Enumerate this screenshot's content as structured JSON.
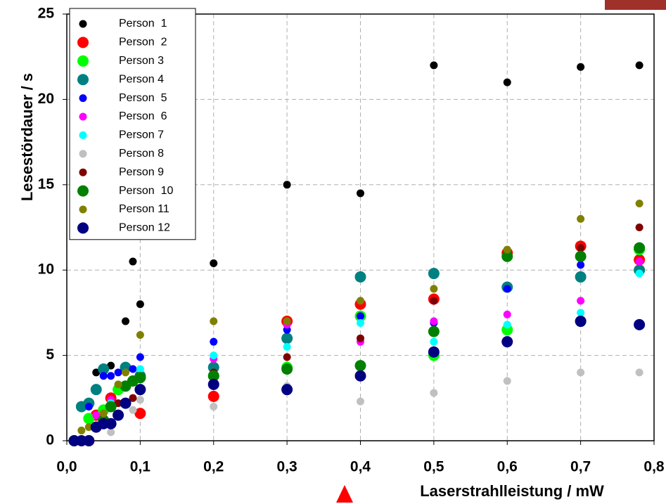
{
  "chart_data": {
    "type": "scatter",
    "x_label": "Laserstrahlleistung / mW",
    "y_label": "Lesestördauer / s",
    "xlim": [
      0,
      0.8
    ],
    "xticks": [
      {
        "value": 0,
        "label": "0,0"
      },
      {
        "value": 0.1,
        "label": "0,1"
      },
      {
        "value": 0.2,
        "label": "0,2"
      },
      {
        "value": 0.3,
        "label": "0,3"
      },
      {
        "value": 0.4,
        "label": "0,4"
      },
      {
        "value": 0.5,
        "label": "0,5"
      },
      {
        "value": 0.6,
        "label": "0,6"
      },
      {
        "value": 0.7,
        "label": "0,7"
      },
      {
        "value": 0.8,
        "label": "0,8"
      }
    ],
    "ylim": [
      0,
      25
    ],
    "yticks": [
      0,
      5,
      10,
      15,
      20,
      25
    ],
    "grid": true,
    "legend": "top-left",
    "series": [
      {
        "name": "Person  1",
        "color": "#000000",
        "marker": "small",
        "x": [
          0.01,
          0.02,
          0.03,
          0.04,
          0.06,
          0.08,
          0.09,
          0.1,
          0.2,
          0.3,
          0.4,
          0.5,
          0.6,
          0.7,
          0.78
        ],
        "values": [
          0,
          0,
          0,
          4,
          4.4,
          7,
          10.5,
          8,
          10.4,
          15,
          14.5,
          22,
          21,
          21.9,
          22
        ]
      },
      {
        "name": "Person  2",
        "color": "#ff0000",
        "marker": "large",
        "x": [
          0.03,
          0.04,
          0.06,
          0.1,
          0.2,
          0.3,
          0.4,
          0.5,
          0.6,
          0.7,
          0.78
        ],
        "values": [
          0,
          1.5,
          2.5,
          1.6,
          2.6,
          7,
          8,
          8.3,
          11,
          11.4,
          10.6
        ]
      },
      {
        "name": "Person 3",
        "color": "#00ff00",
        "marker": "large",
        "x": [
          0.01,
          0.03,
          0.05,
          0.07,
          0.1,
          0.2,
          0.3,
          0.4,
          0.5,
          0.6,
          0.7,
          0.78
        ],
        "values": [
          0,
          1.3,
          1.8,
          3,
          3.7,
          3.8,
          4.3,
          7.3,
          5,
          6.5,
          7,
          11.2
        ]
      },
      {
        "name": "Person 4",
        "color": "#008080",
        "marker": "large",
        "x": [
          0.02,
          0.03,
          0.04,
          0.05,
          0.08,
          0.1,
          0.2,
          0.3,
          0.4,
          0.5,
          0.6,
          0.7,
          0.78
        ],
        "values": [
          2,
          2.2,
          3,
          4.2,
          4.3,
          3.8,
          4.3,
          6,
          9.6,
          9.8,
          9,
          9.6,
          10
        ]
      },
      {
        "name": "Person  5",
        "color": "#0000ff",
        "marker": "small",
        "x": [
          0.03,
          0.05,
          0.06,
          0.07,
          0.09,
          0.1,
          0.2,
          0.3,
          0.4,
          0.5,
          0.6,
          0.7,
          0.78
        ],
        "values": [
          2,
          3.8,
          3.8,
          4,
          4.2,
          4.9,
          5.8,
          6.5,
          7.3,
          6.9,
          8.9,
          10.3,
          11.4
        ]
      },
      {
        "name": "Person  6",
        "color": "#ff00ff",
        "marker": "small",
        "x": [
          0.04,
          0.06,
          0.2,
          0.3,
          0.4,
          0.5,
          0.6,
          0.7,
          0.78
        ],
        "values": [
          1.5,
          2.4,
          4.8,
          6.8,
          5.8,
          7,
          7.4,
          8.2,
          10.5
        ]
      },
      {
        "name": "Person 7",
        "color": "#00ffff",
        "marker": "small",
        "x": [
          0.06,
          0.1,
          0.2,
          0.3,
          0.4,
          0.5,
          0.6,
          0.7,
          0.78
        ],
        "values": [
          2.2,
          4.2,
          5,
          5.5,
          6.9,
          5.8,
          6.8,
          7.5,
          9.8
        ]
      },
      {
        "name": "Person 8",
        "color": "#c0c0c0",
        "marker": "small",
        "x": [
          0.06,
          0.09,
          0.1,
          0.2,
          0.3,
          0.4,
          0.5,
          0.6,
          0.7,
          0.78
        ],
        "values": [
          0.5,
          1.8,
          2.4,
          2,
          3.2,
          2.3,
          2.8,
          3.5,
          4,
          4
        ]
      },
      {
        "name": "Person 9",
        "color": "#800000",
        "marker": "small",
        "x": [
          0.07,
          0.09,
          0.2,
          0.3,
          0.4,
          0.5,
          0.6,
          0.7,
          0.78
        ],
        "values": [
          2.2,
          2.5,
          4,
          4.9,
          6,
          8.2,
          11,
          11.3,
          12.5
        ]
      },
      {
        "name": "Person  10",
        "color": "#008000",
        "marker": "large",
        "x": [
          0.01,
          0.05,
          0.06,
          0.08,
          0.09,
          0.1,
          0.2,
          0.3,
          0.4,
          0.5,
          0.6,
          0.7,
          0.78
        ],
        "values": [
          0,
          1.2,
          2,
          3.2,
          3.5,
          3.7,
          3.8,
          4.2,
          4.4,
          6.4,
          10.8,
          10.8,
          11.3
        ]
      },
      {
        "name": "Person 11",
        "color": "#808000",
        "marker": "small",
        "x": [
          0.02,
          0.03,
          0.05,
          0.07,
          0.08,
          0.1,
          0.2,
          0.3,
          0.4,
          0.5,
          0.6,
          0.7,
          0.78
        ],
        "values": [
          0.6,
          0.8,
          1.6,
          3.3,
          4,
          6.2,
          7,
          7,
          8.2,
          8.9,
          11.2,
          13,
          13.9
        ]
      },
      {
        "name": "Person 12",
        "color": "#000080",
        "marker": "large",
        "x": [
          0.01,
          0.02,
          0.03,
          0.04,
          0.05,
          0.06,
          0.07,
          0.08,
          0.1,
          0.2,
          0.3,
          0.4,
          0.5,
          0.6,
          0.7,
          0.78
        ],
        "values": [
          0,
          0,
          0,
          0.8,
          1,
          1,
          1.5,
          2.2,
          3,
          3.3,
          3,
          3.8,
          5.2,
          5.8,
          7,
          6.8
        ]
      }
    ]
  }
}
